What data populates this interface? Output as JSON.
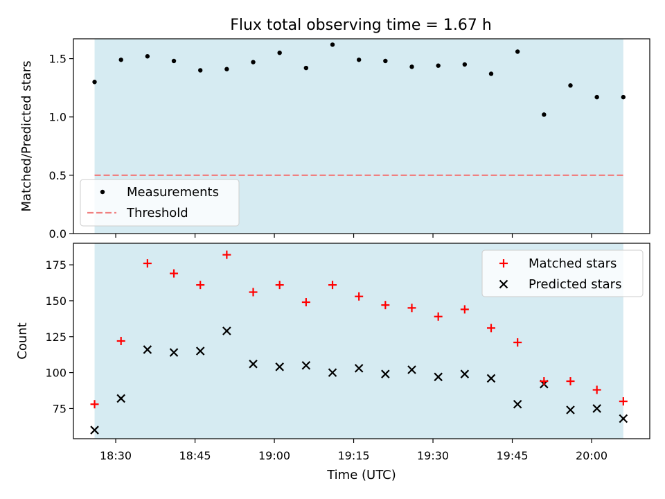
{
  "figure_title": "Flux total observing time = 1.67 h",
  "colors": {
    "observing_span": "#add8e6",
    "measurement": "#000000",
    "threshold": "#f08080",
    "matched": "#ff0000",
    "predicted": "#000000"
  },
  "chart_data": [
    {
      "type": "scatter",
      "title": "Flux total observing time = 1.67 h",
      "ylabel": "Matched/Predicted stars",
      "ylim": [
        0,
        1.67
      ],
      "yticks": [
        "0.0",
        "0.5",
        "1.0",
        "1.5"
      ],
      "xlim": [
        "18:22",
        "20:11"
      ],
      "shaded_span": [
        "18:26",
        "20:06"
      ],
      "legend": {
        "placement": "lower-left",
        "entries": [
          "Measurements",
          "Threshold"
        ]
      },
      "series": [
        {
          "name": "Measurements",
          "x": [
            "18:26",
            "18:31",
            "18:36",
            "18:41",
            "18:46",
            "18:51",
            "18:56",
            "19:01",
            "19:06",
            "19:11",
            "19:16",
            "19:21",
            "19:26",
            "19:31",
            "19:36",
            "19:41",
            "19:46",
            "19:51",
            "19:56",
            "20:01",
            "20:06"
          ],
          "y": [
            1.3,
            1.49,
            1.52,
            1.48,
            1.4,
            1.41,
            1.47,
            1.55,
            1.42,
            1.62,
            1.49,
            1.48,
            1.43,
            1.44,
            1.45,
            1.37,
            1.56,
            1.02,
            1.27,
            1.17,
            1.17
          ]
        },
        {
          "name": "Threshold",
          "y": 0.5,
          "x_range": [
            "18:26",
            "20:06"
          ]
        }
      ]
    },
    {
      "type": "scatter",
      "xlabel": "Time (UTC)",
      "ylabel": "Count",
      "ylim": [
        54,
        190
      ],
      "yticks": [
        "75",
        "100",
        "125",
        "150",
        "175"
      ],
      "xlim": [
        "18:22",
        "20:11"
      ],
      "xticks": [
        "18:30",
        "18:45",
        "19:00",
        "19:15",
        "19:30",
        "19:45",
        "20:00"
      ],
      "shaded_span": [
        "18:26",
        "20:06"
      ],
      "legend": {
        "placement": "upper-right",
        "entries": [
          "Matched stars",
          "Predicted stars"
        ]
      },
      "series": [
        {
          "name": "Matched stars",
          "x": [
            "18:26",
            "18:31",
            "18:36",
            "18:41",
            "18:46",
            "18:51",
            "18:56",
            "19:01",
            "19:06",
            "19:11",
            "19:16",
            "19:21",
            "19:26",
            "19:31",
            "19:36",
            "19:41",
            "19:46",
            "19:51",
            "19:56",
            "20:01",
            "20:06"
          ],
          "y": [
            78,
            122,
            176,
            169,
            161,
            182,
            156,
            161,
            149,
            161,
            153,
            147,
            145,
            139,
            144,
            131,
            121,
            94,
            94,
            88,
            80
          ]
        },
        {
          "name": "Predicted stars",
          "x": [
            "18:26",
            "18:31",
            "18:36",
            "18:41",
            "18:46",
            "18:51",
            "18:56",
            "19:01",
            "19:06",
            "19:11",
            "19:16",
            "19:21",
            "19:26",
            "19:31",
            "19:36",
            "19:41",
            "19:46",
            "19:51",
            "19:56",
            "20:01",
            "20:06"
          ],
          "y": [
            60,
            82,
            116,
            114,
            115,
            129,
            106,
            104,
            105,
            100,
            103,
            99,
            102,
            97,
            99,
            96,
            78,
            92,
            74,
            75,
            68
          ]
        }
      ]
    }
  ]
}
